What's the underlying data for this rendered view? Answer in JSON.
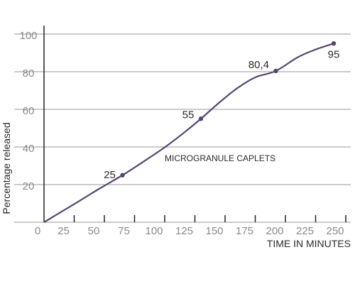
{
  "chart_data": {
    "type": "line",
    "title": "",
    "xlabel": "TIME IN MINUTES",
    "ylabel": "Percentage released",
    "xlim": [
      0,
      255
    ],
    "ylim": [
      0,
      100
    ],
    "xticks": [
      0,
      25,
      50,
      75,
      100,
      125,
      150,
      175,
      200,
      225,
      250
    ],
    "yticks": [
      20,
      40,
      60,
      80,
      100
    ],
    "y_zero_label": "0",
    "grid": "horizontal",
    "annotation": "MICROGRANULE CAPLETS",
    "series": [
      {
        "color": "#574670",
        "curve": [
          [
            0,
            0
          ],
          [
            15,
            5.8
          ],
          [
            30,
            11.6
          ],
          [
            45,
            17.5
          ],
          [
            65,
            25
          ],
          [
            80,
            31.2
          ],
          [
            100,
            39.8
          ],
          [
            115,
            47.1
          ],
          [
            130,
            55
          ],
          [
            145,
            63.5
          ],
          [
            160,
            71.2
          ],
          [
            175,
            77.0
          ],
          [
            192,
            80.4
          ],
          [
            210,
            87.6
          ],
          [
            225,
            91.8
          ],
          [
            240,
            95
          ]
        ],
        "points": [
          {
            "x": 65,
            "y": 25,
            "label": "25"
          },
          {
            "x": 130,
            "y": 55,
            "label": "55"
          },
          {
            "x": 192,
            "y": 80.4,
            "label": "80,4"
          },
          {
            "x": 240,
            "y": 95,
            "label": "95"
          }
        ]
      }
    ]
  }
}
